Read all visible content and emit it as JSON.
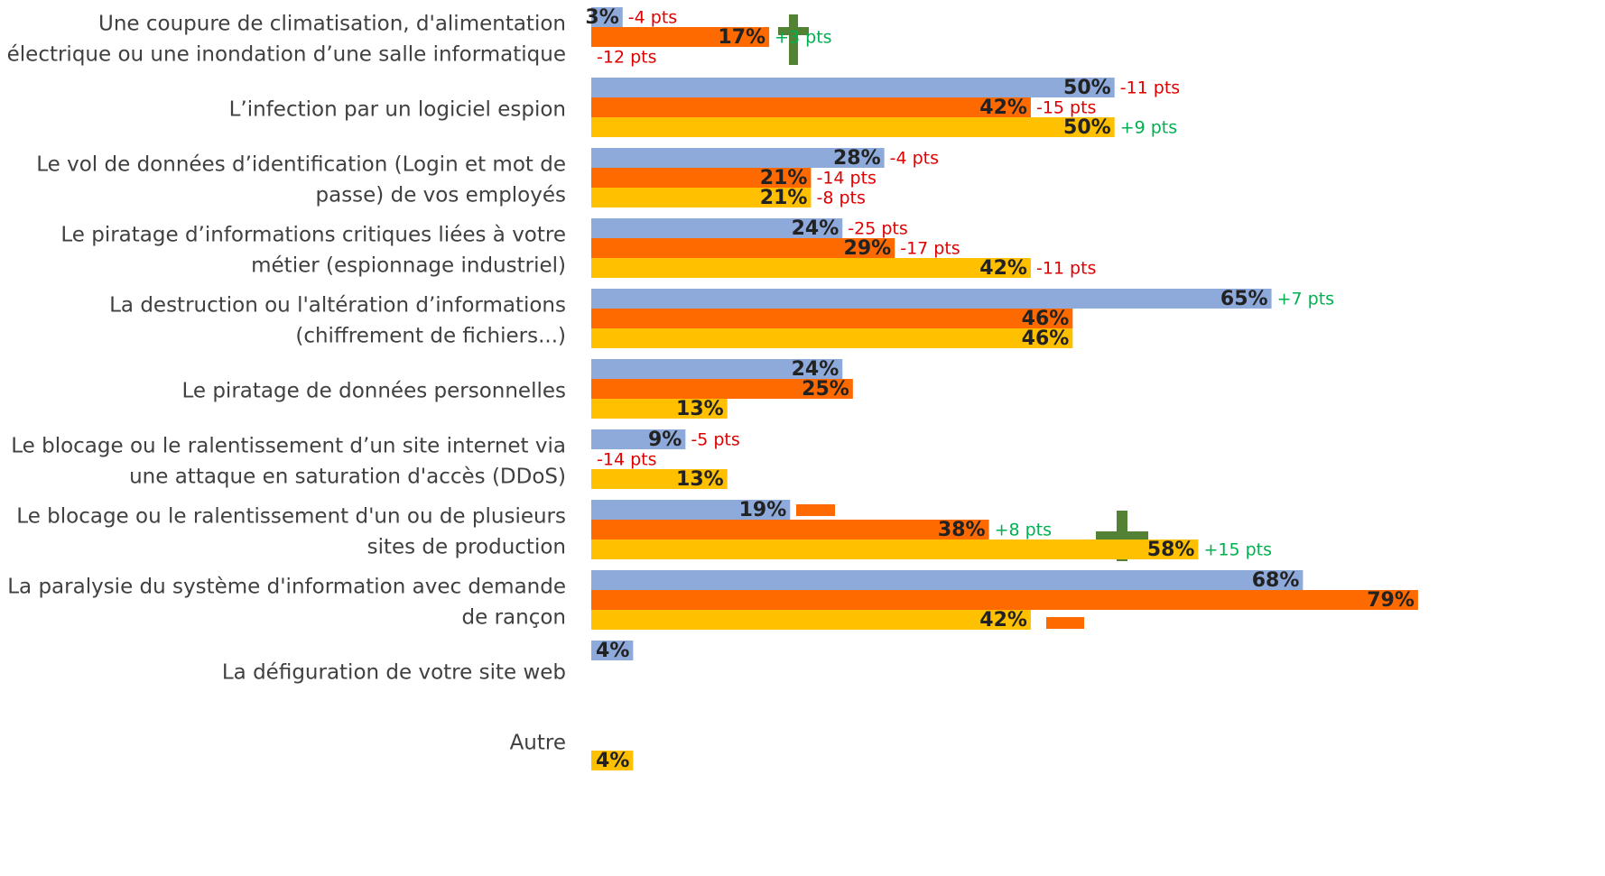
{
  "chart_data": {
    "type": "bar",
    "orientation": "horizontal",
    "categories": [
      [
        "Une coupure de climatisation, d'alimentation",
        "électrique ou une inondation d’une salle informatique"
      ],
      [
        "L’infection par un logiciel espion"
      ],
      [
        "Le vol de données d’identification (Login et mot de",
        "passe) de vos employés"
      ],
      [
        "Le piratage d’informations critiques liées à votre",
        "métier (espionnage industriel)"
      ],
      [
        "La destruction ou l'altération d’informations",
        "(chiffrement de fichiers...)"
      ],
      [
        "Le piratage de données personnelles"
      ],
      [
        "Le blocage ou le ralentissement d’un site internet via",
        "une attaque en saturation d'accès (DDoS)"
      ],
      [
        "Le blocage ou le ralentissement d'un ou de plusieurs",
        "sites de production"
      ],
      [
        "La paralysie du système d'information avec demande",
        "de rançon"
      ],
      [
        "La défiguration de votre site web"
      ],
      [
        "Autre"
      ]
    ],
    "series": [
      {
        "color": "#8eaadb",
        "values": [
          3,
          50,
          28,
          24,
          65,
          24,
          9,
          19,
          68,
          4,
          null
        ],
        "value_labels": [
          "3%",
          "50%",
          "28%",
          "24%",
          "65%",
          "24%",
          "9%",
          "19%",
          "68%",
          "4%",
          null
        ],
        "changes": [
          "-4 pts",
          "-11 pts",
          "-4 pts",
          "-25 pts",
          "+7 pts",
          null,
          "-5 pts",
          null,
          null,
          null,
          null
        ]
      },
      {
        "color": "#ff6a00",
        "values": [
          17,
          42,
          21,
          29,
          46,
          25,
          null,
          38,
          79,
          null,
          null
        ],
        "value_labels": [
          "17%",
          "42%",
          "21%",
          "29%",
          "46%",
          "25%",
          null,
          "38%",
          "79%",
          null,
          null
        ],
        "changes": [
          "+3 pts",
          "-15 pts",
          "-14 pts",
          "-17 pts",
          null,
          null,
          "-14 pts",
          "+8 pts",
          null,
          null,
          null
        ]
      },
      {
        "color": "#ffc000",
        "values": [
          null,
          50,
          21,
          42,
          46,
          13,
          13,
          58,
          42,
          null,
          4
        ],
        "value_labels": [
          null,
          "50%",
          "21%",
          "42%",
          "46%",
          "13%",
          "13%",
          "58%",
          "42%",
          null,
          "4%"
        ],
        "changes": [
          "-12 pts",
          "+9 pts",
          "-8 pts",
          "-11 pts",
          null,
          null,
          null,
          "+15 pts",
          null,
          null,
          null
        ]
      }
    ],
    "xlim": [
      0,
      96
    ]
  }
}
